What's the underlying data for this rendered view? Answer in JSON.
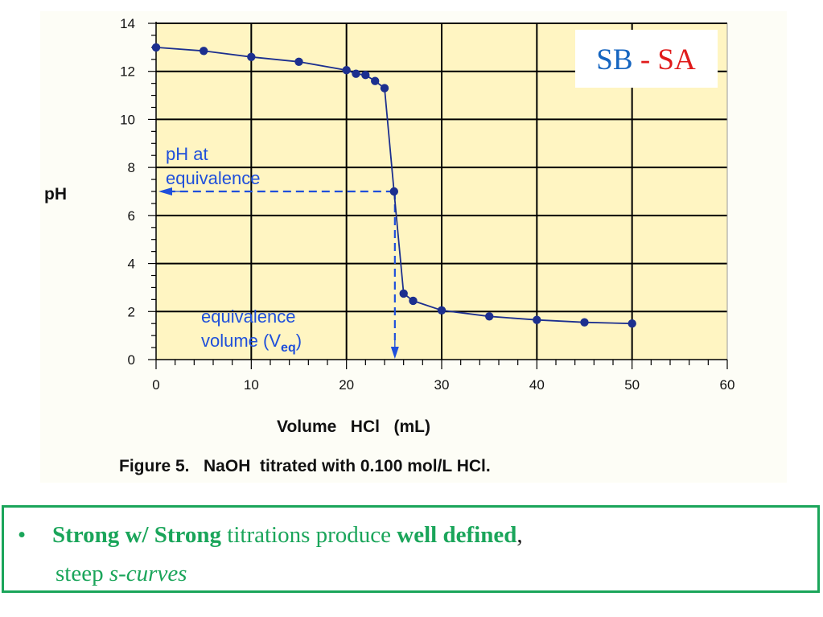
{
  "chart_data": {
    "type": "line",
    "title": "",
    "caption": "Figure 5.   NaOH  titrated with 0.100 mol/L HCl.",
    "xlabel": "Volume   HCl   (mL)",
    "ylabel": "pH",
    "xlim": [
      0,
      60
    ],
    "ylim": [
      0,
      14
    ],
    "x_ticks": [
      "0",
      "10",
      "20",
      "30",
      "40",
      "50",
      "60"
    ],
    "y_ticks": [
      "0",
      "2",
      "4",
      "6",
      "8",
      "10",
      "12",
      "14"
    ],
    "grid": true,
    "background_color": "#fff5c2",
    "line_color": "#1c2f8f",
    "annotation_color": "#1f4fdb",
    "series": [
      {
        "x": [
          0,
          5,
          10,
          15,
          20,
          21,
          22,
          23,
          24,
          25,
          26,
          27,
          30,
          35,
          40,
          45,
          50
        ],
        "y": [
          13.0,
          12.85,
          12.6,
          12.4,
          12.05,
          11.9,
          11.85,
          11.6,
          11.3,
          7.0,
          2.75,
          2.45,
          2.05,
          1.8,
          1.65,
          1.55,
          1.5
        ]
      }
    ],
    "annotations": {
      "ph_label_line1": "pH at",
      "ph_label_line2": "equivalence",
      "vol_label_line1": "equivalence",
      "vol_label_line2_prefix": "volume (V",
      "vol_label_line2_sub": "eq",
      "vol_label_line2_suffix": ")",
      "equivalence_x": 25,
      "equivalence_ph": 7
    }
  },
  "badge": {
    "left": "SB",
    "sep": " - ",
    "right": "SA",
    "left_color": "#1565c0",
    "right_color": "#e01b1b"
  },
  "note": {
    "bullet": "•",
    "bold1": "Strong w/ Strong",
    "text1": " titrations produce ",
    "bold2": "well defined",
    "text2": ",",
    "text3": "steep ",
    "ital": "s-curves"
  }
}
